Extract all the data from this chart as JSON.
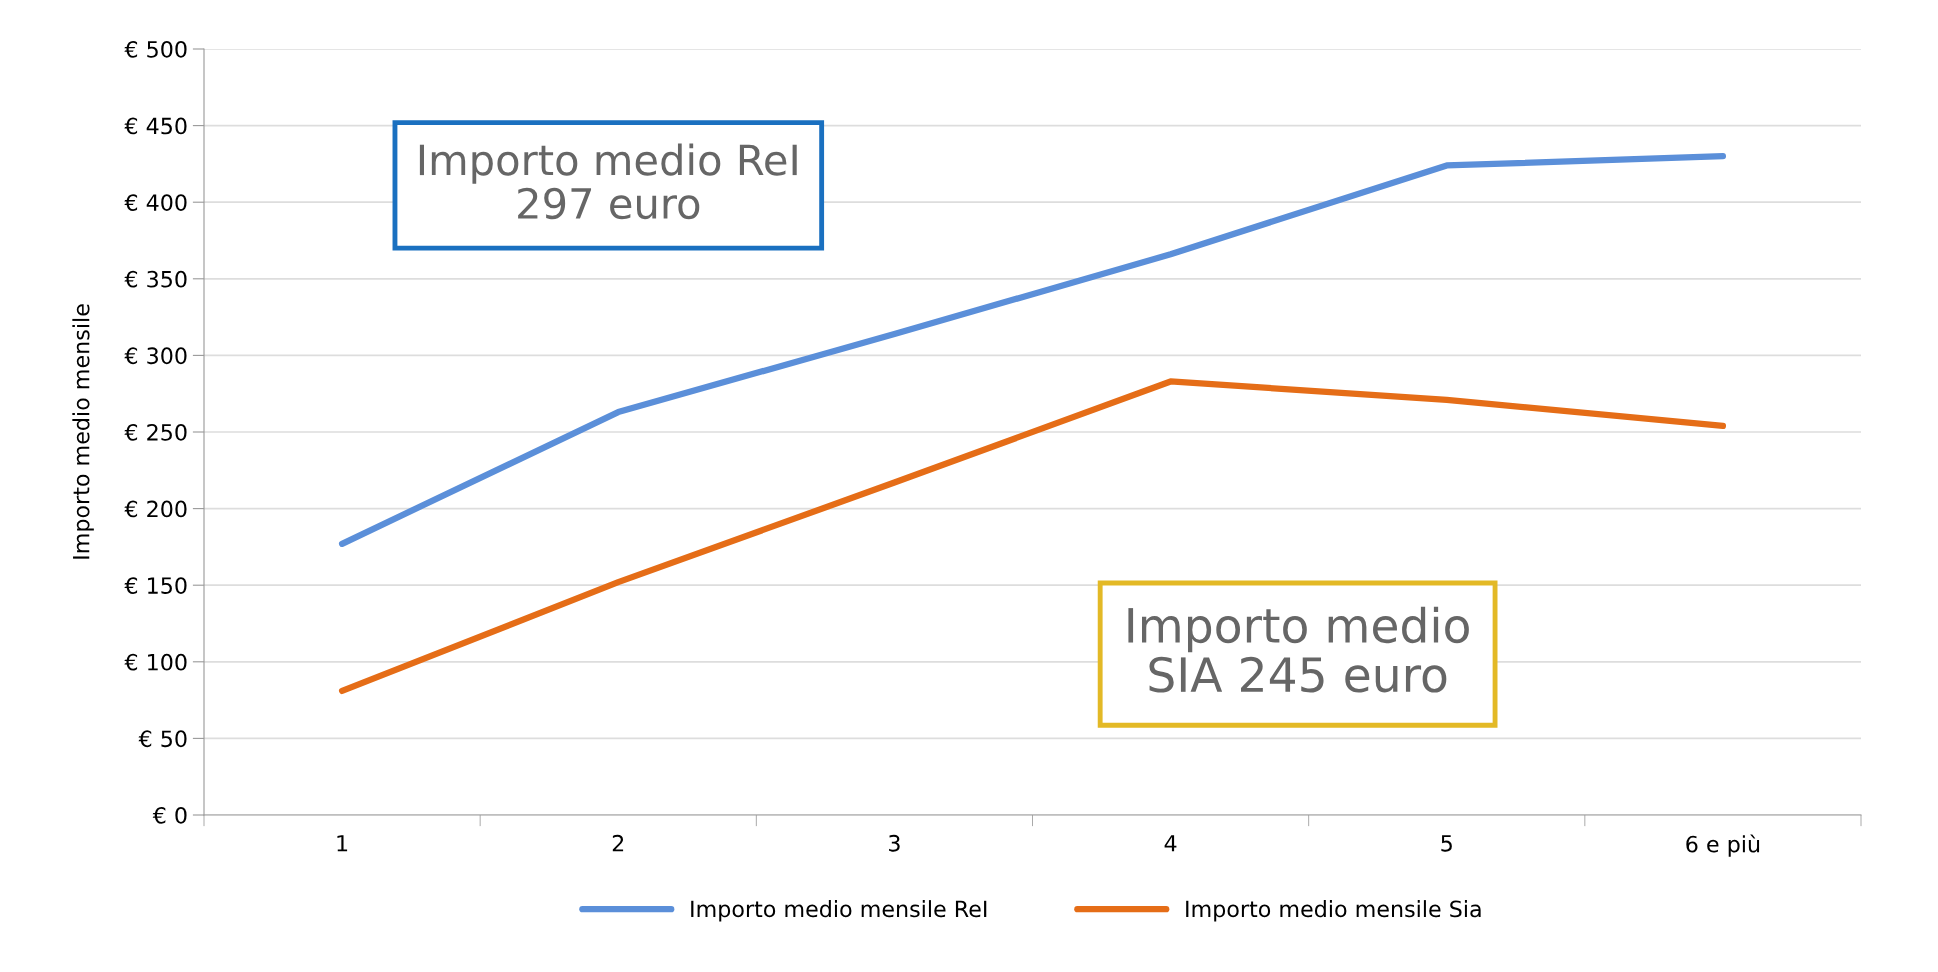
{
  "chart_data": {
    "type": "line",
    "ylabel": "Importo medio mensile",
    "categories": [
      "1",
      "2",
      "3",
      "4",
      "5",
      "6 e più"
    ],
    "series": [
      {
        "name": "Importo medio mensile ReI",
        "color": "#5b8fd9",
        "values": [
          177,
          263,
          314,
          366,
          424,
          430
        ]
      },
      {
        "name": "Importo medio mensile Sia",
        "color": "#e56d17",
        "values": [
          81,
          152,
          217,
          283,
          271,
          254
        ]
      }
    ],
    "ylim": [
      0,
      500
    ],
    "yticks": [
      {
        "value": 0,
        "label": "€ 0"
      },
      {
        "value": 50,
        "label": "€ 50"
      },
      {
        "value": 100,
        "label": "€ 100"
      },
      {
        "value": 150,
        "label": "€ 150"
      },
      {
        "value": 200,
        "label": "€ 200"
      },
      {
        "value": 250,
        "label": "€ 250"
      },
      {
        "value": 300,
        "label": "€ 300"
      },
      {
        "value": 350,
        "label": "€ 350"
      },
      {
        "value": 400,
        "label": "€ 400"
      },
      {
        "value": 450,
        "label": "€ 450"
      },
      {
        "value": 500,
        "label": "€ 500"
      }
    ],
    "annotations": [
      "Importo medio ReI\n297 euro",
      "Importo medio\nSIA 245 euro"
    ],
    "grid": "y",
    "legend": "bottom",
    "marker": "none",
    "line_style": "solid"
  }
}
